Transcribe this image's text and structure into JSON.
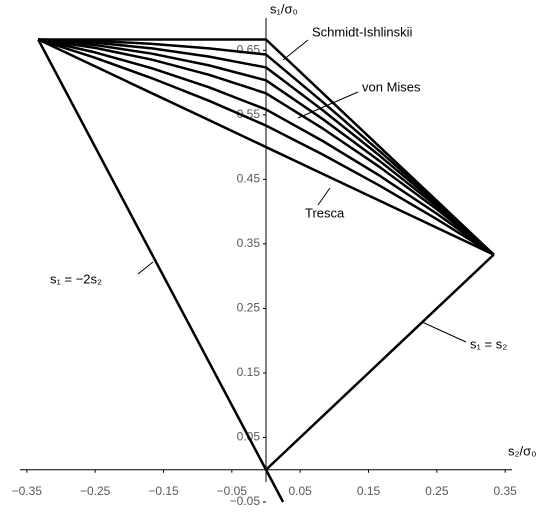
{
  "chart_data": {
    "type": "line",
    "x_label": "s₂/σ₀",
    "y_label": "s₁/σ₀",
    "xlim": [
      -0.36,
      0.36
    ],
    "ylim": [
      -0.05,
      0.7
    ],
    "xticks": [
      {
        "value": -0.35,
        "label": "−0.35"
      },
      {
        "value": -0.25,
        "label": "−0.25"
      },
      {
        "value": -0.15,
        "label": "−0.15"
      },
      {
        "value": -0.05,
        "label": "−0.05"
      },
      0.05,
      0.15,
      0.25,
      0.35
    ],
    "yticks": [
      {
        "value": -0.05,
        "label": "−0.05"
      },
      0.05,
      0.15,
      0.25,
      0.35,
      0.45,
      0.55,
      0.65
    ],
    "color": "#000000",
    "series": [
      {
        "name": "Tresca",
        "x": [
          -0.3333,
          -0.25,
          -0.1667,
          -0.0833,
          0,
          0.0833,
          0.1667,
          0.25,
          0.3333
        ],
        "values": [
          0.6667,
          0.625,
          0.5833,
          0.5417,
          0.5,
          0.4583,
          0.4167,
          0.375,
          0.3333
        ]
      },
      {
        "x": [
          -0.3333,
          -0.25,
          -0.1667,
          -0.0833,
          0,
          0.0833,
          0.1667,
          0.25,
          0.3333
        ],
        "values": [
          0.6667,
          0.6383,
          0.6066,
          0.5717,
          0.5333,
          0.4883,
          0.44,
          0.3883,
          0.3333
        ]
      },
      {
        "x": [
          -0.3333,
          -0.25,
          -0.1667,
          -0.0833,
          0,
          0.0833,
          0.1667,
          0.25,
          0.3333
        ],
        "values": [
          0.6667,
          0.6467,
          0.622,
          0.5926,
          0.5583,
          0.5092,
          0.4554,
          0.3967,
          0.3333
        ]
      },
      {
        "name": "von Mises",
        "x": [
          -0.3333,
          -0.25,
          -0.1667,
          -0.0833,
          0,
          0.0833,
          0.1667,
          0.25,
          0.3333
        ],
        "values": [
          0.6667,
          0.6537,
          0.6354,
          0.612,
          0.5833,
          0.5286,
          0.4688,
          0.4037,
          0.3333
        ]
      },
      {
        "x": [
          -0.3333,
          -0.25,
          -0.1667,
          -0.0833,
          0,
          0.0833,
          0.1667,
          0.25,
          0.3333
        ],
        "values": [
          0.6667,
          0.6582,
          0.6447,
          0.6266,
          0.6034,
          0.5432,
          0.4781,
          0.4082,
          0.3333
        ]
      },
      {
        "x": [
          -0.3333,
          -0.25,
          -0.1667,
          -0.0833,
          0,
          0.0833,
          0.1667,
          0.25,
          0.3333
        ],
        "values": [
          0.6667,
          0.6619,
          0.6529,
          0.6402,
          0.6234,
          0.5568,
          0.4863,
          0.4119,
          0.3333
        ]
      },
      {
        "x": [
          -0.3333,
          -0.25,
          -0.1667,
          -0.0833,
          0,
          0.0833,
          0.1667,
          0.25,
          0.3333
        ],
        "values": [
          0.6667,
          0.6646,
          0.6599,
          0.653,
          0.6434,
          0.5696,
          0.4933,
          0.4146,
          0.3333
        ]
      },
      {
        "name": "Schmidt-Ishlinskii",
        "x": [
          -0.3333,
          -0.25,
          -0.1667,
          -0.0833,
          0,
          0.0833,
          0.1667,
          0.25,
          0.3333
        ],
        "values": [
          0.6667,
          0.6667,
          0.6667,
          0.6667,
          0.6667,
          0.5833,
          0.5,
          0.4167,
          0.3333
        ]
      },
      {
        "name": "s₁ = −2s₂",
        "x": [
          -0.3333,
          0.025
        ],
        "values": [
          0.6667,
          -0.05
        ]
      },
      {
        "name": "s₁ = s₂",
        "x": [
          0,
          0.3333
        ],
        "values": [
          0,
          0.3333
        ]
      }
    ]
  }
}
